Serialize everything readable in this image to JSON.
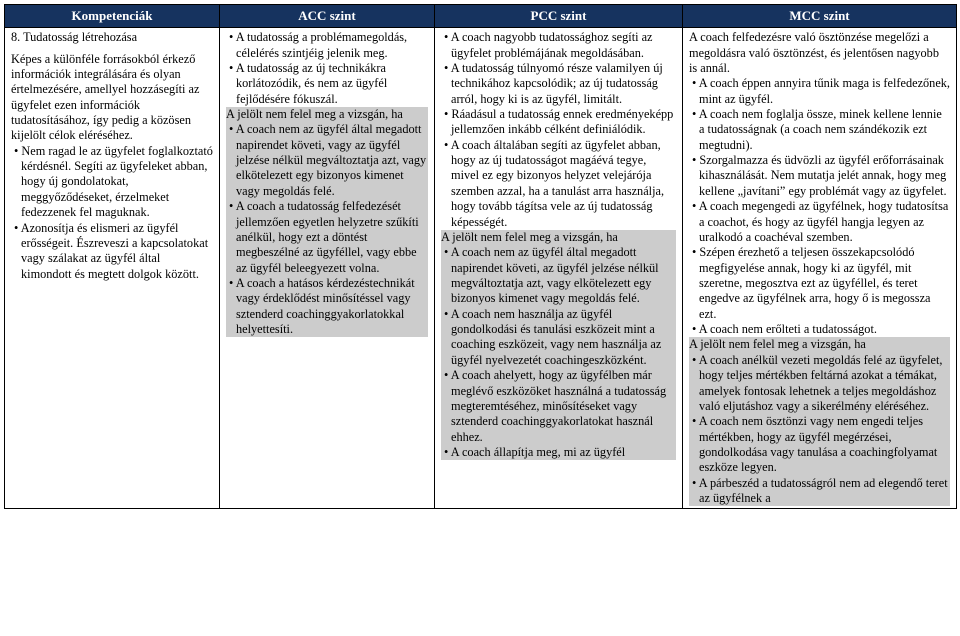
{
  "header": {
    "bg_color": "#16335f",
    "text_color": "#ffffff",
    "cols": [
      "Kompetenciák",
      "ACC szint",
      "PCC szint",
      "MCC szint"
    ]
  },
  "row": {
    "title_line": "8. Tudatosság létrehozása",
    "col0": "Képes a különféle forrásokból érkező információk integrálására és olyan értelmezésére, amellyel hozzásegíti az ügyfelet ezen információk tudatosításához, így pedig a közösen kijelölt célok eléréséhez.\n• Nem ragad le az ügyfelet foglalkoztató kérdésnél. Segíti az ügyfeleket abban, hogy új gondolatokat, meggyőződéseket, érzelmeket fedezzenek fel maguknak.\n• Azonosítja és elismeri az ügyfél erősségeit. Észreveszi a kapcsolatokat vagy szálakat az ügyfél által kimondott és megtett dolgok között.",
    "col1": "• A tudatosság a problémamegoldás, célelérés szintjéig jelenik meg.\n• A tudatosság az új technikákra korlátozódik, és nem az ügyfél fejlődésére fókuszál.",
    "col1_hl": "A jelölt nem felel meg a vizsgán, ha\n• A coach nem az ügyfél által megadott napirendet követi, vagy az ügyfél jelzése nélkül megváltoztatja azt, vagy elkötelezett egy bizonyos kimenet vagy megoldás felé.\n• A coach a tudatosság felfedezését jellemzően egyetlen helyzetre szűkíti anélkül, hogy ezt a döntést megbeszélné az ügyféllel, vagy ebbe az ügyfél beleegyezett volna.\n• A coach a hatásos kérdezéstechnikát vagy érdeklődést minősítéssel vagy sztenderd coachinggyakorlatokkal helyettesíti.",
    "col2": "• A coach nagyobb tudatossághoz segíti az ügyfelet problémájának megoldásában.\n• A tudatosság túlnyomó része valamilyen új technikához kapcsolódik; az új tudatosság arról, hogy ki is az ügyfél, limitált.\n• Ráadásul a tudatosság ennek eredményeképp jellemzően inkább célként definiálódik.\n• A coach általában segíti az ügyfelet abban, hogy az új tudatosságot magáévá tegye, mivel ez egy bizonyos helyzet velejárója szemben azzal, ha a tanulást arra használja, hogy tovább tágítsa vele az új tudatosság képességét.",
    "col2_hl": "A jelölt nem felel meg a vizsgán, ha\n• A coach nem az ügyfél által megadott napirendet követi, az ügyfél jelzése nélkül megváltoztatja azt, vagy elkötelezett egy bizonyos kimenet vagy megoldás felé.\n• A coach nem használja az ügyfél gondolkodási és tanulási eszközeit mint a coaching eszközeit, vagy nem használja az ügyfél nyelvezetét coachingeszközként.\n• A coach ahelyett, hogy az ügyfélben már meglévő eszközöket használná a tudatosság megteremtéséhez, minősítéseket vagy sztenderd coachinggyakorlatokat használ ehhez.\n• A coach állapítja meg, mi az ügyfél",
    "col3": "A coach felfedezésre való ösztönzése megelőzi a megoldásra való ösztönzést, és jelentősen nagyobb is annál.\n• A coach éppen annyira tűnik maga is felfedezőnek, mint az ügyfél.\n• A coach nem foglalja össze, minek kellene lennie a tudatosságnak (a coach nem szándékozik ezt megtudni).\n• Szorgalmazza és üdvözli az ügyfél erőforrásainak kihasználását. Nem mutatja jelét annak, hogy meg kellene „javítani” egy problémát vagy az ügyfelet.\n• A coach megengedi az ügyfélnek, hogy tudatosítsa a coachot, és hogy az ügyfél hangja legyen az uralkodó a coachéval szemben.\n• Szépen érezhető a teljesen összekapcsolódó megfigyelése annak, hogy ki az ügyfél, mit szeretne, megosztva ezt az ügyféllel, és teret engedve az ügyfélnek arra, hogy ő is megossza ezt.\n• A coach nem erőlteti a tudatosságot.",
    "col3_hl": "A jelölt nem felel meg a vizsgán, ha\n• A coach anélkül vezeti megoldás felé az ügyfelet, hogy teljes mértékben feltárná azokat a témákat, amelyek fontosak lehetnek a teljes megoldáshoz való eljutáshoz vagy a sikerélmény eléréséhez.\n• A coach nem ösztönzi vagy nem engedi teljes mértékben, hogy az ügyfél megérzései, gondolkodása vagy tanulása a coachingfolyamat eszköze legyen.\n• A párbeszéd a tudatosságról nem ad elegendő teret az ügyfélnek a"
  }
}
